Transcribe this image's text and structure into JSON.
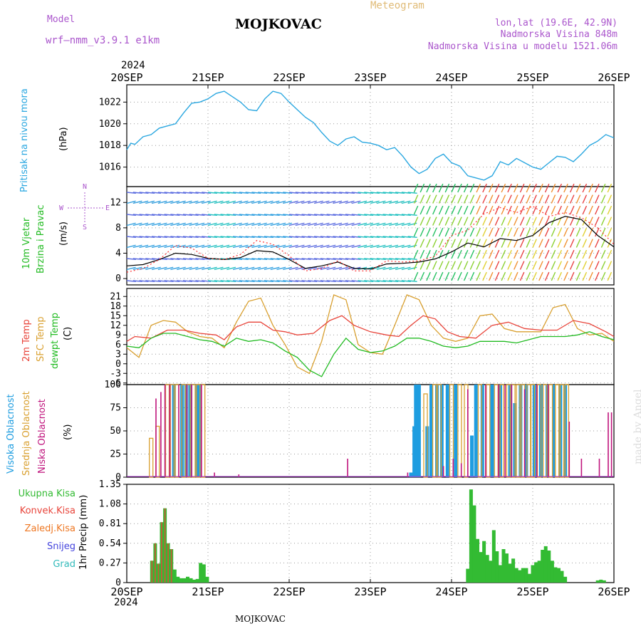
{
  "header": {
    "model_label": "Model",
    "model_name": "wrf—nmm_v3.9.1 e1km",
    "title": "MOJKOVAC",
    "subtitle": "Meteogram",
    "lonlat": "lon,lat (19.6E, 42.9N)",
    "altitude": "Nadmorska Visina 848m",
    "model_altitude": "Nadmorska Visina u modelu 1521.06m",
    "year_top": "2024",
    "year_bottom": "2024",
    "footer_station": "MOJKOVAC",
    "credit": "made by Angel"
  },
  "colors": {
    "pressure": "#2aa7e0",
    "wind_label": "#22bb22",
    "wind_speed": "#000000",
    "gust": "#ff3333",
    "temp2m": "#e8443a",
    "sfc": "#d9a030",
    "dew": "#22bb22",
    "visoka": "#1e9de0",
    "srednja": "#d9a030",
    "niska": "#c0157d",
    "ukupna": "#33bb33",
    "konvek": "#e8443a",
    "zaledj": "#ee7722",
    "snijeg": "#4444dd",
    "grad": "#33bbbb",
    "compass": "#aa55cc"
  },
  "panel_labels": {
    "pressure": [
      "Pritisak na nivou mora",
      "(hPa)"
    ],
    "wind": [
      "10m Vjetar",
      "Brzina i Pravac",
      "(m/s)"
    ],
    "compass": [
      "N",
      "S",
      "E",
      "W"
    ],
    "temp": [
      "2m Temp",
      "SFC Temp",
      "dewpt Temp",
      "(C)"
    ],
    "cloud": [
      "Visoka Oblacnost",
      "Srednja Oblacnost",
      "Niska Oblacnost",
      "(%)"
    ],
    "precip_legend": [
      "Ukupna Kisa",
      "Konvek.Kisa",
      "Zaledj.Kisa",
      "Snijeg",
      "Grad"
    ],
    "precip_axis": "1hr Precip (mm)"
  },
  "chart_data": [
    {
      "type": "line",
      "panel": "pressure",
      "x_categories": [
        "20SEP",
        "21SEP",
        "22SEP",
        "23SEP",
        "24SEP",
        "25SEP",
        "26SEP"
      ],
      "ylim": [
        1014.2,
        1023.6
      ],
      "yticks": [
        "1016",
        "1018",
        "1020",
        "1022"
      ],
      "series": [
        {
          "name": "Pritisak na nivou mora",
          "x": [
            0,
            0.05,
            0.1,
            0.2,
            0.3,
            0.4,
            0.5,
            0.6,
            0.7,
            0.8,
            0.9,
            1.0,
            1.1,
            1.2,
            1.3,
            1.4,
            1.5,
            1.6,
            1.7,
            1.8,
            1.9,
            2.0,
            2.1,
            2.2,
            2.3,
            2.4,
            2.5,
            2.6,
            2.7,
            2.8,
            2.9,
            3.0,
            3.1,
            3.2,
            3.3,
            3.4,
            3.5,
            3.6,
            3.7,
            3.8,
            3.9,
            4.0,
            4.1,
            4.2,
            4.3,
            4.4,
            4.5,
            4.6,
            4.7,
            4.8,
            4.9,
            5.0,
            5.1,
            5.2,
            5.3,
            5.4,
            5.5,
            5.6,
            5.7,
            5.8,
            5.9,
            6.0
          ],
          "y": [
            1017.6,
            1018.2,
            1018.1,
            1018.8,
            1019.0,
            1019.6,
            1019.8,
            1020.0,
            1021.0,
            1021.9,
            1022.0,
            1022.3,
            1022.8,
            1023.0,
            1022.5,
            1022.0,
            1021.3,
            1021.2,
            1022.3,
            1023.0,
            1022.8,
            1022.0,
            1021.3,
            1020.6,
            1020.1,
            1019.2,
            1018.4,
            1018.0,
            1018.6,
            1018.8,
            1018.3,
            1018.2,
            1018.0,
            1017.6,
            1017.8,
            1017.0,
            1016.0,
            1015.4,
            1015.8,
            1016.8,
            1017.2,
            1016.4,
            1016.1,
            1015.2,
            1015.0,
            1014.8,
            1015.2,
            1016.5,
            1016.2,
            1016.8,
            1016.4,
            1016.0,
            1015.8,
            1016.4,
            1017.0,
            1016.9,
            1016.5,
            1017.2,
            1018.0,
            1018.4,
            1019.0,
            1018.7
          ]
        }
      ]
    },
    {
      "type": "line",
      "panel": "wind",
      "x_categories": [
        "20SEP",
        "21SEP",
        "22SEP",
        "23SEP",
        "24SEP",
        "25SEP",
        "26SEP"
      ],
      "ylim": [
        -1,
        14.5
      ],
      "yticks": [
        "0",
        "4",
        "8",
        "12"
      ],
      "series": [
        {
          "name": "speed",
          "x": [
            0,
            0.2,
            0.4,
            0.6,
            0.8,
            1.0,
            1.2,
            1.4,
            1.6,
            1.8,
            2.0,
            2.2,
            2.4,
            2.6,
            2.8,
            3.0,
            3.2,
            3.4,
            3.6,
            3.8,
            4.0,
            4.2,
            4.4,
            4.6,
            4.8,
            5.0,
            5.2,
            5.4,
            5.6,
            5.8,
            6.0
          ],
          "y": [
            2.0,
            2.2,
            3.0,
            4.0,
            3.8,
            3.2,
            3.0,
            3.3,
            4.4,
            4.2,
            3.0,
            1.6,
            2.0,
            2.6,
            1.6,
            1.5,
            2.3,
            2.4,
            2.6,
            3.1,
            4.2,
            5.6,
            5.0,
            6.3,
            6.0,
            6.8,
            8.8,
            9.8,
            9.3,
            6.8,
            5.0
          ]
        },
        {
          "name": "gust",
          "x": [
            0,
            0.2,
            0.4,
            0.6,
            0.8,
            1.0,
            1.2,
            1.4,
            1.6,
            1.8,
            2.0,
            2.2,
            2.4,
            2.6,
            2.8,
            3.0,
            3.2,
            3.4,
            3.6,
            3.8,
            4.0,
            4.2,
            4.4,
            4.6,
            4.8,
            5.0,
            5.2,
            5.4,
            5.6,
            5.8,
            6.0
          ],
          "y": [
            1.0,
            1.6,
            3.0,
            5.2,
            4.8,
            3.2,
            3.0,
            3.8,
            6.0,
            5.4,
            3.6,
            1.2,
            1.6,
            2.8,
            1.2,
            1.2,
            2.8,
            2.6,
            2.8,
            3.5,
            6.8,
            7.6,
            10.2,
            11.2,
            10.4,
            11.4,
            9.8,
            10.4,
            9.6,
            8.0,
            5.4
          ]
        }
      ]
    },
    {
      "type": "line",
      "panel": "temperature",
      "x_categories": [
        "20SEP",
        "21SEP",
        "22SEP",
        "23SEP",
        "24SEP",
        "25SEP",
        "26SEP"
      ],
      "ylim": [
        -6.5,
        23.5
      ],
      "yticks": [
        "-6",
        "-3",
        "0",
        "3",
        "6",
        "9",
        "12",
        "15",
        "18",
        "21"
      ],
      "series": [
        {
          "name": "2m Temp",
          "x": [
            0,
            0.1,
            0.3,
            0.5,
            0.7,
            0.9,
            1.1,
            1.2,
            1.35,
            1.5,
            1.65,
            1.8,
            1.95,
            2.1,
            2.3,
            2.5,
            2.65,
            2.8,
            3.0,
            3.2,
            3.35,
            3.5,
            3.65,
            3.8,
            3.95,
            4.1,
            4.3,
            4.5,
            4.7,
            4.9,
            5.1,
            5.3,
            5.5,
            5.7,
            5.9,
            6.0
          ],
          "y": [
            7.0,
            8.5,
            8.0,
            10.5,
            10.5,
            9.5,
            9.0,
            7.5,
            11.5,
            13.0,
            13.0,
            10.5,
            10.0,
            9.0,
            9.5,
            13.5,
            15.0,
            12.0,
            10.0,
            9.0,
            8.5,
            12.0,
            15.0,
            14.0,
            10.0,
            8.5,
            8.0,
            12.0,
            13.0,
            11.0,
            10.5,
            10.5,
            13.5,
            12.5,
            10.0,
            8.5
          ]
        },
        {
          "name": "SFC Temp",
          "x": [
            0,
            0.15,
            0.3,
            0.45,
            0.6,
            0.75,
            0.9,
            1.05,
            1.2,
            1.35,
            1.5,
            1.65,
            1.8,
            1.95,
            2.1,
            2.25,
            2.4,
            2.55,
            2.7,
            2.85,
            3.0,
            3.15,
            3.3,
            3.45,
            3.6,
            3.75,
            3.9,
            4.05,
            4.2,
            4.35,
            4.5,
            4.65,
            4.8,
            4.95,
            5.1,
            5.25,
            5.4,
            5.55,
            5.7,
            5.85,
            6.0
          ],
          "y": [
            5.0,
            2.0,
            12.0,
            13.5,
            13.0,
            10.0,
            8.5,
            8.0,
            5.0,
            13.0,
            19.5,
            20.5,
            12.0,
            6.0,
            -1.0,
            -3.0,
            7.0,
            21.5,
            20.0,
            6.0,
            3.5,
            3.0,
            12.0,
            21.5,
            20.0,
            12.0,
            8.0,
            7.0,
            8.0,
            15.0,
            15.5,
            11.0,
            10.0,
            10.0,
            10.0,
            17.5,
            18.5,
            11.0,
            9.0,
            9.5,
            7.0
          ]
        },
        {
          "name": "dewpt Temp",
          "x": [
            0,
            0.15,
            0.3,
            0.45,
            0.6,
            0.75,
            0.9,
            1.05,
            1.2,
            1.35,
            1.5,
            1.65,
            1.8,
            1.95,
            2.1,
            2.25,
            2.4,
            2.55,
            2.7,
            2.85,
            3.0,
            3.15,
            3.3,
            3.45,
            3.6,
            3.75,
            3.9,
            4.05,
            4.2,
            4.35,
            4.5,
            4.65,
            4.8,
            4.95,
            5.1,
            5.25,
            5.4,
            5.55,
            5.7,
            5.85,
            6.0
          ],
          "y": [
            5.5,
            5.0,
            8.0,
            9.5,
            9.5,
            8.5,
            7.5,
            7.0,
            5.5,
            8.0,
            7.0,
            7.5,
            6.5,
            4.0,
            2.0,
            -2.0,
            -4.0,
            3.0,
            8.0,
            4.5,
            3.5,
            4.0,
            5.5,
            8.0,
            8.0,
            7.0,
            5.5,
            5.0,
            5.5,
            7.0,
            7.0,
            7.0,
            6.5,
            7.5,
            8.5,
            8.5,
            8.5,
            9.0,
            10.0,
            8.5,
            7.5
          ]
        }
      ]
    },
    {
      "type": "bar",
      "panel": "cloud",
      "x_categories": [
        "20SEP",
        "21SEP",
        "22SEP",
        "23SEP",
        "24SEP",
        "25SEP",
        "26SEP"
      ],
      "ylim": [
        0,
        100
      ],
      "yticks": [
        "0",
        "25",
        "50",
        "75",
        "100"
      ],
      "series": [
        {
          "name": "Visoka Oblacnost",
          "x": [
            0.58,
            0.68,
            0.73,
            0.78,
            0.86,
            0.9,
            3.5,
            3.54,
            3.56,
            3.6,
            3.7,
            3.75,
            3.82,
            3.88,
            3.95,
            4.05,
            4.25,
            4.3,
            4.38,
            4.5,
            4.6,
            4.72,
            4.78,
            4.85,
            4.92,
            5.02,
            5.1,
            5.18,
            5.26,
            5.34,
            5.4
          ],
          "y": [
            100,
            100,
            100,
            100,
            100,
            100,
            5,
            55,
            100,
            100,
            55,
            100,
            100,
            100,
            100,
            100,
            45,
            100,
            100,
            100,
            100,
            100,
            80,
            100,
            100,
            100,
            100,
            100,
            100,
            100,
            100
          ]
        },
        {
          "name": "Srednja Oblacnost",
          "x": [
            0.3,
            0.38,
            0.5,
            0.56,
            0.62,
            0.7,
            0.76,
            0.82,
            0.88,
            0.94,
            3.68,
            3.79,
            3.85,
            4.0,
            4.1,
            4.18,
            4.35,
            4.45,
            4.55,
            4.62,
            4.7,
            4.76,
            4.82,
            4.88,
            4.95,
            5.0,
            5.08,
            5.15,
            5.22,
            5.3,
            5.36,
            5.42
          ],
          "y": [
            42,
            55,
            100,
            100,
            100,
            100,
            100,
            100,
            100,
            100,
            90,
            100,
            100,
            100,
            100,
            100,
            100,
            100,
            100,
            100,
            100,
            100,
            100,
            100,
            100,
            100,
            100,
            100,
            100,
            100,
            100,
            100
          ]
        },
        {
          "name": "Niska Oblacnost",
          "x": [
            0.36,
            0.42,
            0.47,
            0.53,
            0.64,
            0.74,
            0.8,
            0.92,
            1.08,
            1.38,
            2.72,
            3.46,
            3.9,
            4.02,
            4.12,
            4.2,
            4.42,
            4.58,
            4.66,
            4.74,
            4.9,
            5.05,
            5.19,
            5.45,
            5.6,
            5.82,
            5.93,
            5.97
          ],
          "y": [
            85,
            92,
            100,
            100,
            100,
            100,
            100,
            100,
            5,
            3,
            20,
            5,
            12,
            20,
            15,
            95,
            100,
            100,
            100,
            100,
            95,
            100,
            100,
            60,
            20,
            20,
            70,
            70
          ]
        }
      ]
    },
    {
      "type": "bar",
      "panel": "precipitation",
      "x_categories": [
        "20SEP",
        "21SEP",
        "22SEP",
        "23SEP",
        "24SEP",
        "25SEP",
        "26SEP"
      ],
      "ylim": [
        0,
        1.35
      ],
      "yticks": [
        "0",
        "0.27",
        "0.54",
        "0.81",
        "1.08",
        "1.35"
      ],
      "series": [
        {
          "name": "Ukupna Kisa",
          "x": [
            0.31,
            0.35,
            0.39,
            0.43,
            0.47,
            0.51,
            0.55,
            0.59,
            0.63,
            0.67,
            0.71,
            0.75,
            0.79,
            0.83,
            0.87,
            0.91,
            0.95,
            0.99,
            1.03,
            4.2,
            4.24,
            4.28,
            4.32,
            4.36,
            4.4,
            4.44,
            4.48,
            4.52,
            4.56,
            4.6,
            4.64,
            4.68,
            4.72,
            4.76,
            4.8,
            4.84,
            4.88,
            4.92,
            4.96,
            5.0,
            5.04,
            5.08,
            5.12,
            5.16,
            5.2,
            5.24,
            5.28,
            5.32,
            5.36,
            5.4,
            5.44,
            5.8,
            5.84,
            5.88
          ],
          "y": [
            0.3,
            0.54,
            0.26,
            0.83,
            1.02,
            0.54,
            0.46,
            0.18,
            0.08,
            0.06,
            0.06,
            0.08,
            0.06,
            0.04,
            0.05,
            0.27,
            0.25,
            0.08,
            0.0,
            0.19,
            1.28,
            1.06,
            0.6,
            0.42,
            0.57,
            0.38,
            0.3,
            0.72,
            0.43,
            0.24,
            0.46,
            0.4,
            0.26,
            0.33,
            0.2,
            0.17,
            0.2,
            0.2,
            0.12,
            0.24,
            0.28,
            0.3,
            0.45,
            0.5,
            0.44,
            0.3,
            0.21,
            0.2,
            0.16,
            0.08,
            0.0,
            0.03,
            0.04,
            0.03
          ]
        },
        {
          "name": "Konvek.Kisa",
          "x": [
            0.31,
            0.35,
            0.39,
            0.43,
            0.47,
            0.51,
            0.55
          ],
          "y": [
            0.3,
            0.54,
            0.26,
            0.83,
            1.02,
            0.54,
            0.46
          ]
        }
      ]
    }
  ],
  "x_axis_labels": [
    "20SEP",
    "21SEP",
    "22SEP",
    "23SEP",
    "24SEP",
    "25SEP",
    "26SEP"
  ]
}
